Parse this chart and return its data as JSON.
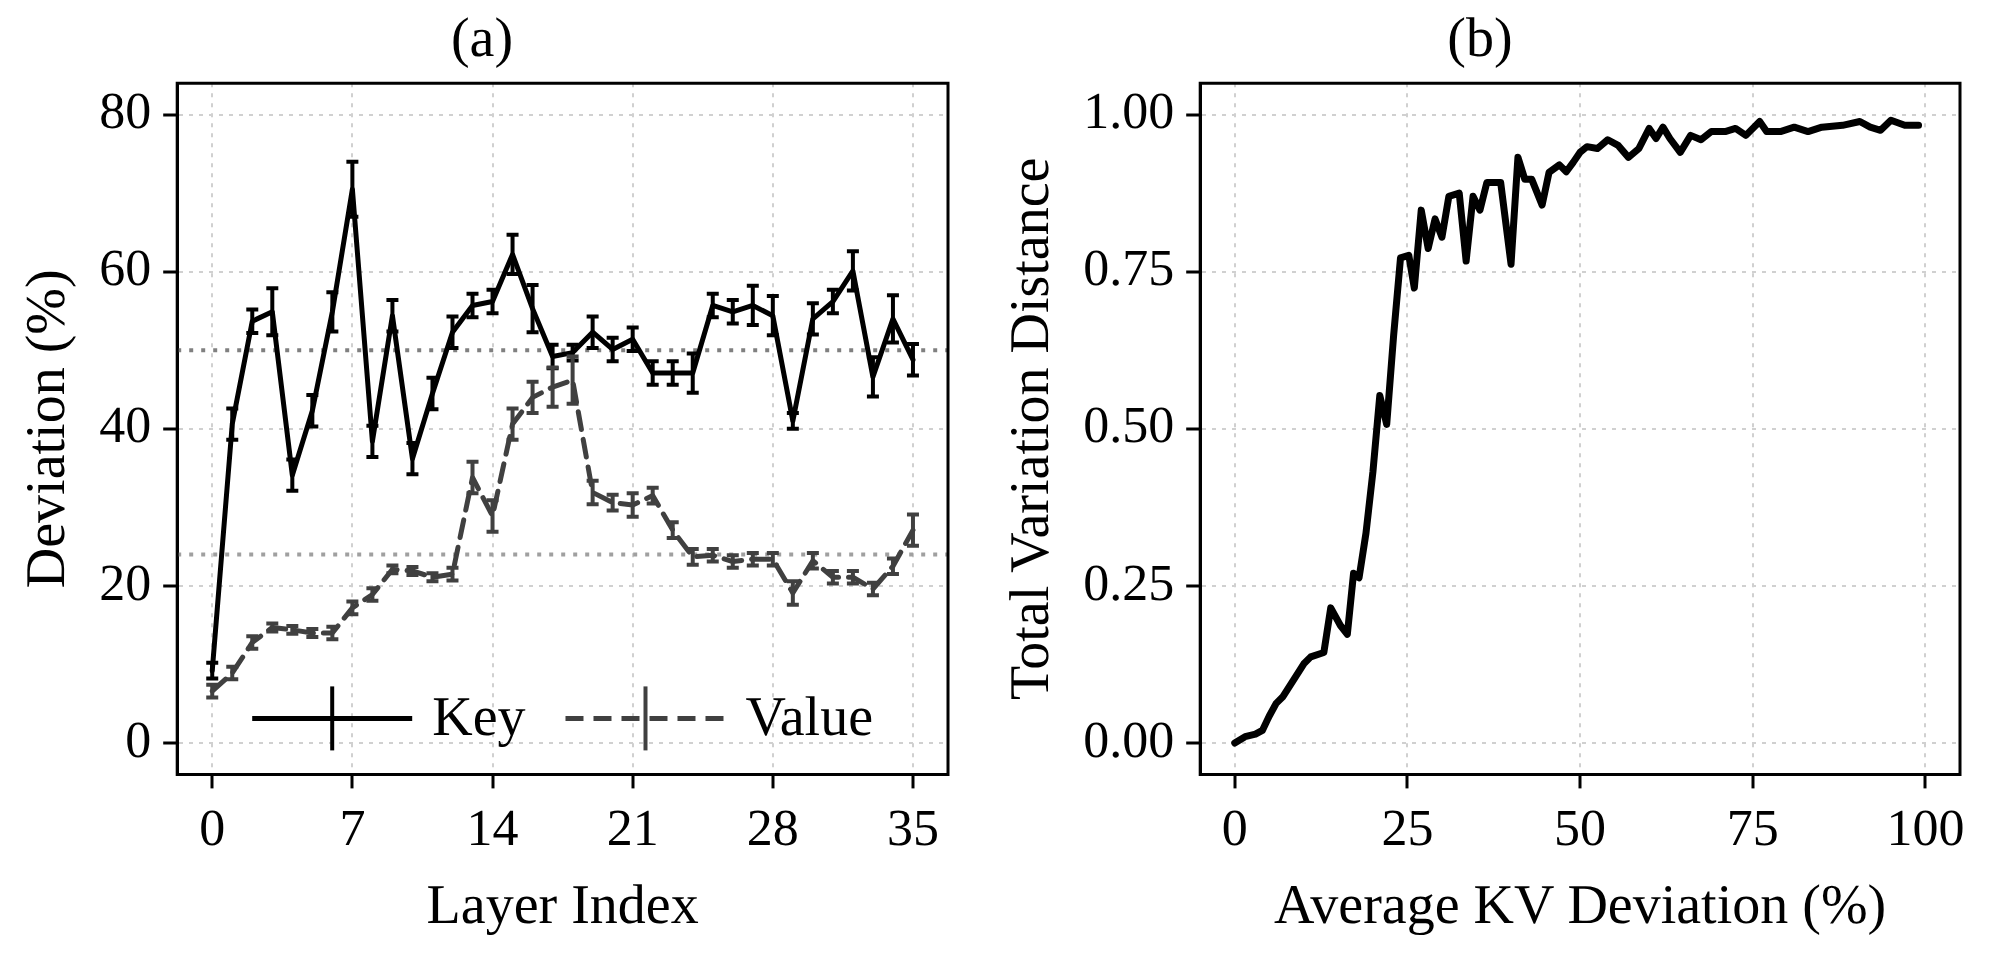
{
  "chart_data": [
    {
      "type": "line",
      "title": "(a)",
      "xlabel": "Layer Index",
      "ylabel": "Deviation (%)",
      "x": [
        0,
        1,
        2,
        3,
        4,
        5,
        6,
        7,
        8,
        9,
        10,
        11,
        12,
        13,
        14,
        15,
        16,
        17,
        18,
        19,
        20,
        21,
        22,
        23,
        24,
        25,
        26,
        27,
        28,
        29,
        30,
        31,
        32,
        33,
        34,
        35
      ],
      "series": [
        {
          "name": "Key",
          "color": "#000000",
          "line_style": "solid",
          "values": [
            9.2,
            40.6,
            53.7,
            54.9,
            34.1,
            42.3,
            54.9,
            70.5,
            38.4,
            54.4,
            36.2,
            44.5,
            52.3,
            55.7,
            56.2,
            62.2,
            55.3,
            49.2,
            49.7,
            52.3,
            50.1,
            51.4,
            47.1,
            47.1,
            47.1,
            55.7,
            54.9,
            55.7,
            54.4,
            41.0,
            54.0,
            56.2,
            60.1,
            46.6,
            54.0,
            48.8
          ],
          "errors": [
            1,
            2,
            1.5,
            3,
            2,
            2,
            2.5,
            3.5,
            2,
            2,
            2,
            2,
            2,
            1.5,
            1.5,
            2.5,
            3,
            1.5,
            1,
            2,
            1.5,
            1.5,
            1.5,
            1.5,
            2.5,
            1.5,
            1.5,
            2.5,
            2.5,
            1,
            2,
            1.5,
            2.5,
            2.5,
            3,
            2
          ]
        },
        {
          "name": "Value",
          "color": "#404040",
          "line_style": "dashed",
          "values": [
            6.6,
            8.9,
            12.8,
            14.7,
            14.4,
            14.0,
            14.0,
            17.2,
            18.9,
            22.1,
            21.9,
            21.1,
            21.5,
            33.8,
            28.9,
            40.6,
            44.0,
            45.3,
            46.2,
            31.9,
            30.6,
            30.3,
            31.5,
            27.1,
            23.7,
            23.9,
            23.1,
            23.4,
            23.4,
            19.1,
            23.2,
            21.1,
            21.1,
            19.6,
            22.5,
            27.1
          ],
          "errors": [
            0.8,
            0.8,
            0.8,
            0.5,
            0.5,
            0.5,
            0.8,
            0.8,
            0.8,
            0.5,
            0.5,
            0.5,
            0.8,
            2,
            2,
            2,
            2,
            2.5,
            3,
            1.5,
            1,
            1.5,
            1,
            1,
            1,
            0.8,
            0.8,
            0.8,
            0.8,
            1.5,
            1,
            0.8,
            0.8,
            0.8,
            1,
            2
          ]
        }
      ],
      "xlim": [
        -1.75,
        36.75
      ],
      "xticks": [
        0,
        7,
        14,
        21,
        28,
        35
      ],
      "ylim": [
        -4,
        84
      ],
      "yticks": [
        0,
        20,
        40,
        60,
        80
      ],
      "ref_lines": [
        {
          "axis": "y",
          "value": 50,
          "color": "#808080",
          "line_style": "dotted"
        },
        {
          "axis": "y",
          "value": 24,
          "color": "#a0a0a0",
          "line_style": "dotted"
        }
      ],
      "grid": true,
      "legend": "bottom"
    },
    {
      "type": "line",
      "title": "(b)",
      "xlabel": "Average KV Deviation (%)",
      "ylabel": "Total Variation Distance",
      "series": [
        {
          "color": "#000000",
          "x": [
            0,
            1.5,
            3,
            4,
            5,
            6,
            7,
            8.5,
            10,
            11,
            12.9,
            13.9,
            15.3,
            16.3,
            17.2,
            18,
            19,
            20,
            21,
            22,
            23,
            24,
            25.2,
            26,
            27,
            28,
            29,
            30,
            31,
            32.5,
            33.5,
            34.5,
            35.5,
            36.5,
            38.5,
            40,
            41,
            42,
            43,
            44.5,
            45.5,
            47,
            48,
            49,
            50,
            51,
            52.5,
            54,
            55.5,
            57,
            58.5,
            60,
            61,
            62,
            63,
            64.5,
            66,
            67.5,
            69,
            71,
            72.5,
            74,
            76,
            77,
            79,
            81,
            83,
            85,
            88,
            90.5,
            92,
            93.5,
            95,
            97,
            99
          ],
          "values": [
            0.0,
            0.01,
            0.014,
            0.02,
            0.043,
            0.063,
            0.074,
            0.1,
            0.126,
            0.137,
            0.144,
            0.215,
            0.187,
            0.173,
            0.27,
            0.263,
            0.334,
            0.431,
            0.553,
            0.507,
            0.648,
            0.772,
            0.776,
            0.724,
            0.848,
            0.787,
            0.834,
            0.805,
            0.87,
            0.875,
            0.767,
            0.87,
            0.848,
            0.892,
            0.892,
            0.762,
            0.932,
            0.897,
            0.897,
            0.856,
            0.908,
            0.92,
            0.909,
            0.924,
            0.94,
            0.949,
            0.946,
            0.96,
            0.951,
            0.932,
            0.946,
            0.978,
            0.962,
            0.98,
            0.962,
            0.94,
            0.967,
            0.96,
            0.973,
            0.973,
            0.978,
            0.967,
            0.989,
            0.973,
            0.973,
            0.98,
            0.973,
            0.98,
            0.983,
            0.989,
            0.98,
            0.975,
            0.991,
            0.983,
            0.983
          ]
        }
      ],
      "xlim": [
        -5,
        105
      ],
      "xticks": [
        0,
        25,
        50,
        75,
        100
      ],
      "ylim": [
        -0.05,
        1.05
      ],
      "yticks": [
        {
          "value": 0,
          "label": "0.00"
        },
        {
          "value": 0.25,
          "label": "0.25"
        },
        {
          "value": 0.5,
          "label": "0.50"
        },
        {
          "value": 0.75,
          "label": "0.75"
        },
        {
          "value": 1,
          "label": "1.00"
        }
      ],
      "grid": true
    }
  ]
}
